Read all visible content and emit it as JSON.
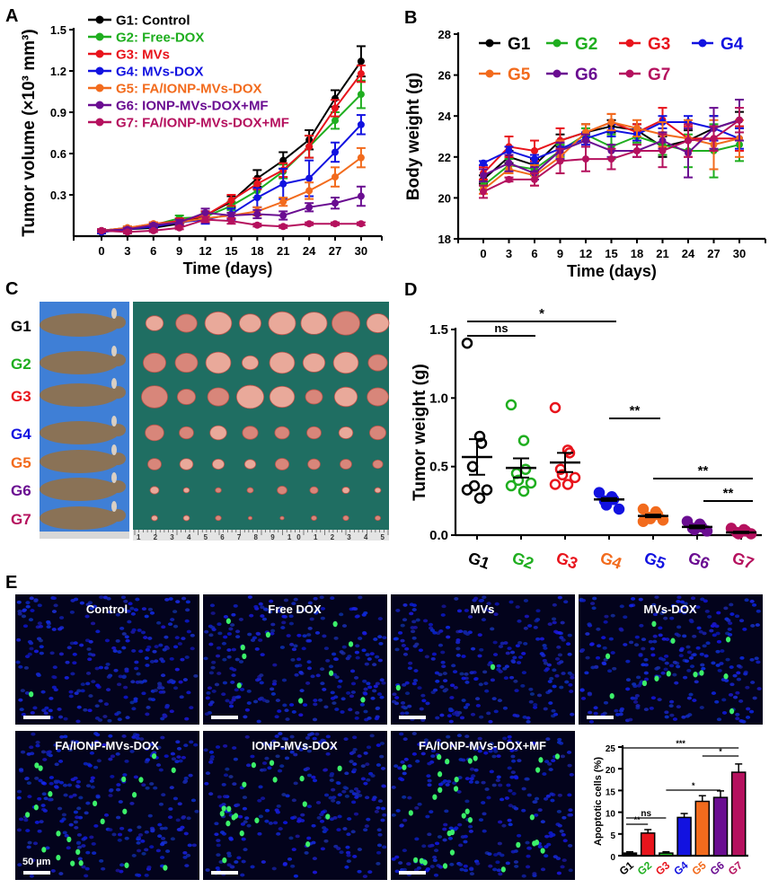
{
  "panel_labels": [
    "A",
    "B",
    "C",
    "D",
    "E"
  ],
  "colors": {
    "G1": "#000000",
    "G2": "#1fae1f",
    "G3": "#e8141c",
    "G4": "#1212e0",
    "G5": "#f26b1d",
    "G6": "#6a0d91",
    "G7": "#b5115e"
  },
  "panel_c": {
    "group_labels": [
      "G1",
      "G2",
      "G3",
      "G4",
      "G5",
      "G6",
      "G7"
    ],
    "group_label_colors": [
      "#000000",
      "#1fae1f",
      "#e8141c",
      "#1212e0",
      "#f26b1d",
      "#6a0d91",
      "#b5115e"
    ],
    "ruler_numbers": "1 2 3 4 5 6 7 8 9 10 1 2 3 4 5"
  },
  "panel_e": {
    "image_titles": [
      "Control",
      "Free DOX",
      "MVs",
      "MVs-DOX",
      "FA/IONP-MVs-DOX",
      "IONP-MVs-DOX",
      "FA/IONP-MVs-DOX+MF"
    ],
    "scalebar_label": "50 µm"
  },
  "chart_data": [
    {
      "panel": "A",
      "type": "line",
      "xlabel": "Time (days)",
      "ylabel": "Tumor volume (×10³ mm³)",
      "x": [
        0,
        3,
        6,
        9,
        12,
        15,
        18,
        21,
        24,
        27,
        30
      ],
      "xticks": [
        0,
        3,
        6,
        9,
        12,
        15,
        18,
        21,
        24,
        27,
        30
      ],
      "yticks": [
        0.3,
        0.6,
        0.9,
        1.2,
        1.5
      ],
      "ylim": [
        0,
        1.5
      ],
      "legend_placement": "top-left",
      "series": [
        {
          "name": "G1: Control",
          "color": "#000000",
          "values": [
            0.03,
            0.05,
            0.06,
            0.09,
            0.15,
            0.25,
            0.42,
            0.55,
            0.7,
            1.0,
            1.27
          ],
          "error": [
            0.01,
            0.01,
            0.01,
            0.02,
            0.03,
            0.04,
            0.06,
            0.06,
            0.07,
            0.06,
            0.11
          ]
        },
        {
          "name": "G2: Free-DOX",
          "color": "#1fae1f",
          "values": [
            0.04,
            0.06,
            0.08,
            0.13,
            0.14,
            0.22,
            0.33,
            0.47,
            0.65,
            0.84,
            1.03
          ],
          "error": [
            0.01,
            0.01,
            0.01,
            0.02,
            0.03,
            0.03,
            0.05,
            0.05,
            0.08,
            0.06,
            0.1
          ]
        },
        {
          "name": "G3: MVs",
          "color": "#e8141c",
          "values": [
            0.04,
            0.06,
            0.09,
            0.11,
            0.15,
            0.26,
            0.38,
            0.48,
            0.65,
            0.93,
            1.18
          ],
          "error": [
            0.01,
            0.01,
            0.01,
            0.02,
            0.03,
            0.04,
            0.04,
            0.05,
            0.08,
            0.06,
            0.06
          ]
        },
        {
          "name": "G4: MVs-DOX",
          "color": "#1212e0",
          "values": [
            0.03,
            0.05,
            0.07,
            0.1,
            0.12,
            0.16,
            0.28,
            0.38,
            0.42,
            0.61,
            0.81
          ],
          "error": [
            0.01,
            0.01,
            0.01,
            0.02,
            0.03,
            0.04,
            0.07,
            0.11,
            0.13,
            0.07,
            0.07
          ]
        },
        {
          "name": "G5: FA/IONP-MVs-DOX",
          "color": "#f26b1d",
          "values": [
            0.04,
            0.06,
            0.09,
            0.1,
            0.13,
            0.15,
            0.18,
            0.25,
            0.33,
            0.43,
            0.57
          ],
          "error": [
            0.01,
            0.01,
            0.01,
            0.02,
            0.02,
            0.02,
            0.03,
            0.03,
            0.06,
            0.07,
            0.07
          ]
        },
        {
          "name": "G6: IONP-MVs-DOX+MF",
          "color": "#6a0d91",
          "values": [
            0.04,
            0.05,
            0.08,
            0.1,
            0.17,
            0.15,
            0.16,
            0.15,
            0.21,
            0.24,
            0.29
          ],
          "error": [
            0.01,
            0.01,
            0.01,
            0.02,
            0.03,
            0.02,
            0.03,
            0.03,
            0.03,
            0.04,
            0.07
          ]
        },
        {
          "name": "G7: FA/IONP-MVs-DOX+MF",
          "color": "#b5115e",
          "values": [
            0.04,
            0.03,
            0.04,
            0.06,
            0.12,
            0.11,
            0.08,
            0.07,
            0.09,
            0.09,
            0.09
          ],
          "error": [
            0.01,
            0.01,
            0.01,
            0.01,
            0.02,
            0.02,
            0.01,
            0.01,
            0.01,
            0.01,
            0.01
          ]
        }
      ]
    },
    {
      "panel": "B",
      "type": "line",
      "xlabel": "Time (days)",
      "ylabel": "Body weight (g)",
      "x": [
        0,
        3,
        6,
        9,
        12,
        15,
        18,
        21,
        24,
        27,
        30
      ],
      "xticks": [
        0,
        3,
        6,
        9,
        12,
        15,
        18,
        21,
        24,
        27,
        30
      ],
      "yticks": [
        18,
        20,
        22,
        24,
        26,
        28
      ],
      "ylim": [
        18,
        28
      ],
      "legend_placement": "top",
      "series": [
        {
          "name": "G1",
          "color": "#000000",
          "values": [
            20.9,
            22.0,
            21.6,
            22.8,
            23.2,
            23.5,
            23.3,
            22.5,
            22.8,
            23.4,
            23.8
          ],
          "error": [
            0.2,
            0.3,
            0.3,
            0.3,
            0.4,
            0.3,
            0.3,
            0.5,
            0.5,
            0.6,
            0.4
          ]
        },
        {
          "name": "G2",
          "color": "#1fae1f",
          "values": [
            20.6,
            21.6,
            21.4,
            22.3,
            23.1,
            22.5,
            23.0,
            22.6,
            22.3,
            22.3,
            22.6
          ],
          "error": [
            0.2,
            0.3,
            0.3,
            0.3,
            0.3,
            0.6,
            0.3,
            0.5,
            0.8,
            1.3,
            0.8
          ]
        },
        {
          "name": "G3",
          "color": "#e8141c",
          "values": [
            21.2,
            22.5,
            22.3,
            22.8,
            23.2,
            23.7,
            23.2,
            23.8,
            22.9,
            22.9,
            22.9
          ],
          "error": [
            0.3,
            0.5,
            0.5,
            0.6,
            0.4,
            0.4,
            0.4,
            0.6,
            0.6,
            0.6,
            0.6
          ]
        },
        {
          "name": "G4",
          "color": "#1212e0",
          "values": [
            21.7,
            22.3,
            21.9,
            22.4,
            22.9,
            23.3,
            23.1,
            23.7,
            23.7,
            23.4,
            22.9
          ],
          "error": [
            0.1,
            0.2,
            0.2,
            0.3,
            0.3,
            0.3,
            0.3,
            0.3,
            0.3,
            0.6,
            0.5
          ]
        },
        {
          "name": "G5",
          "color": "#f26b1d",
          "values": [
            20.4,
            21.4,
            21.1,
            22.0,
            23.2,
            23.7,
            23.4,
            23.1,
            22.9,
            22.6,
            22.9
          ],
          "error": [
            0.2,
            0.2,
            0.5,
            0.8,
            0.4,
            0.4,
            0.4,
            0.6,
            0.9,
            1.2,
            0.9
          ]
        },
        {
          "name": "G6",
          "color": "#6a0d91",
          "values": [
            21.1,
            21.7,
            21.2,
            22.3,
            22.8,
            22.3,
            22.3,
            22.8,
            22.2,
            23.4,
            23.8
          ],
          "error": [
            0.3,
            0.4,
            0.3,
            0.4,
            0.3,
            0.3,
            0.3,
            0.4,
            1.2,
            1.0,
            1.0
          ]
        },
        {
          "name": "G7",
          "color": "#b5115e",
          "values": [
            20.3,
            20.9,
            20.9,
            21.8,
            21.9,
            21.9,
            22.3,
            22.3,
            22.8,
            22.9,
            23.8
          ],
          "error": [
            0.3,
            0.1,
            0.3,
            0.6,
            0.6,
            0.5,
            0.3,
            0.8,
            0.8,
            0.6,
            0.6
          ]
        }
      ]
    },
    {
      "panel": "D",
      "type": "scatter",
      "ylabel": "Tumor weight (g)",
      "categories": [
        "G1",
        "G2",
        "G3",
        "G4",
        "G5",
        "G6",
        "G7"
      ],
      "category_label_colors": [
        "#000000",
        "#1fae1f",
        "#e8141c",
        "#f26b1d",
        "#1212e0",
        "#6a0d91",
        "#b5115e"
      ],
      "yticks": [
        0.0,
        0.5,
        1.0,
        1.5
      ],
      "ytick_labels": [
        "0.0",
        "0.5",
        "1.0",
        "1.5"
      ],
      "ylim": [
        0,
        1.5
      ],
      "groups": [
        {
          "color": "#000000",
          "filled": false,
          "points": [
            1.4,
            0.72,
            0.67,
            0.5,
            0.36,
            0.33,
            0.33,
            0.27
          ],
          "mean": 0.57,
          "sem": 0.13
        },
        {
          "color": "#1fae1f",
          "filled": false,
          "points": [
            0.95,
            0.69,
            0.48,
            0.45,
            0.4,
            0.38,
            0.36,
            0.32
          ],
          "mean": 0.49,
          "sem": 0.07
        },
        {
          "color": "#e8141c",
          "filled": false,
          "points": [
            0.93,
            0.62,
            0.6,
            0.48,
            0.44,
            0.42,
            0.37,
            0.37
          ],
          "mean": 0.53,
          "sem": 0.07
        },
        {
          "color": "#1212e0",
          "filled": true,
          "points": [
            0.31,
            0.28,
            0.26,
            0.25,
            0.22,
            0.19
          ],
          "mean": 0.26,
          "sem": 0.01
        },
        {
          "color": "#f26b1d",
          "filled": true,
          "points": [
            0.19,
            0.17,
            0.15,
            0.13,
            0.12,
            0.11,
            0.1
          ],
          "mean": 0.14,
          "sem": 0.01
        },
        {
          "color": "#6a0d91",
          "filled": true,
          "points": [
            0.1,
            0.08,
            0.06,
            0.05,
            0.04,
            0.03
          ],
          "mean": 0.06,
          "sem": 0.01
        },
        {
          "color": "#b5115e",
          "filled": true,
          "points": [
            0.05,
            0.04,
            0.03,
            0.02,
            0.01,
            0.01
          ],
          "mean": 0.02,
          "sem": 0.005
        }
      ],
      "significance": [
        {
          "from": 0,
          "to": 3,
          "label": "*"
        },
        {
          "from": 0,
          "to": 2,
          "label": "ns"
        },
        {
          "from": 3,
          "to": 4,
          "label": "**"
        },
        {
          "from": 4,
          "to": 6,
          "label": "**"
        },
        {
          "from": 5,
          "to": 6,
          "label": "**"
        }
      ]
    },
    {
      "panel": "E",
      "type": "bar",
      "ylabel": "Apoptotic cells (%)",
      "categories": [
        "G1",
        "G2",
        "G3",
        "G4",
        "G5",
        "G6",
        "G7"
      ],
      "category_label_colors": [
        "#000000",
        "#1fae1f",
        "#e8141c",
        "#1212e0",
        "#f26b1d",
        "#6a0d91",
        "#b5115e"
      ],
      "bar_colors": [
        "#000000",
        "#e8141c",
        "#1fae1f",
        "#1212e0",
        "#f26b1d",
        "#6a0d91",
        "#b5115e"
      ],
      "values": [
        0.6,
        5.2,
        0.6,
        8.8,
        12.5,
        13.4,
        19.2
      ],
      "error": [
        0.3,
        0.8,
        0.3,
        0.9,
        1.3,
        1.5,
        1.9
      ],
      "yticks": [
        0,
        5,
        10,
        15,
        20,
        25
      ],
      "ylim": [
        0,
        25
      ],
      "significance": [
        {
          "from": 0,
          "to": 6,
          "label": "***"
        },
        {
          "from": 4,
          "to": 6,
          "label": "*"
        },
        {
          "from": 2,
          "to": 5,
          "label": "*"
        },
        {
          "from": 0,
          "to": 2,
          "label": "ns"
        },
        {
          "from": 0,
          "to": 1,
          "label": "**"
        }
      ]
    }
  ]
}
